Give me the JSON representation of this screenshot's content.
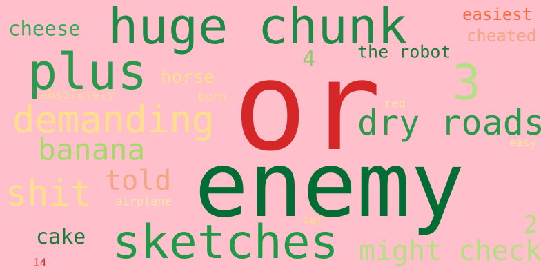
{
  "words": [
    {
      "text": "or",
      "color": "#d62728"
    },
    {
      "text": "enemy",
      "color": "#006d34"
    },
    {
      "text": "huge chunk",
      "color": "#1f8a48"
    },
    {
      "text": "plus",
      "color": "#2a9a4e"
    },
    {
      "text": "sketches",
      "color": "#1e9a49"
    },
    {
      "text": "3",
      "color": "#b5df85"
    },
    {
      "text": "demanding",
      "color": "#fee08b"
    },
    {
      "text": "dry roads",
      "color": "#2b9a4c"
    },
    {
      "text": "banana",
      "color": "#a6d96a"
    },
    {
      "text": "shit",
      "color": "#fee08b"
    },
    {
      "text": "told",
      "color": "#f4a582"
    },
    {
      "text": "might check",
      "color": "#b3df7f"
    },
    {
      "text": "cheese",
      "color": "#38a957"
    },
    {
      "text": "easiest",
      "color": "#f46d43"
    },
    {
      "text": "cheated",
      "color": "#f4a582"
    },
    {
      "text": "the robot",
      "color": "#1a7a3c"
    },
    {
      "text": "4",
      "color": "#8ccc6a"
    },
    {
      "text": "horse",
      "color": "#fee08b"
    },
    {
      "text": "absolutely",
      "color": "#fddc93"
    },
    {
      "text": "burn",
      "color": "#fee08b"
    },
    {
      "text": "red",
      "color": "#f8e8a0"
    },
    {
      "text": "easy",
      "color": "#f8e8a0"
    },
    {
      "text": "cake",
      "color": "#1a7a3c"
    },
    {
      "text": "2",
      "color": "#b3df7f"
    },
    {
      "text": "airplane",
      "color": "#f8e8a0"
    },
    {
      "text": "car",
      "color": "#fee08b"
    },
    {
      "text": "14",
      "color": "#d62728"
    }
  ]
}
